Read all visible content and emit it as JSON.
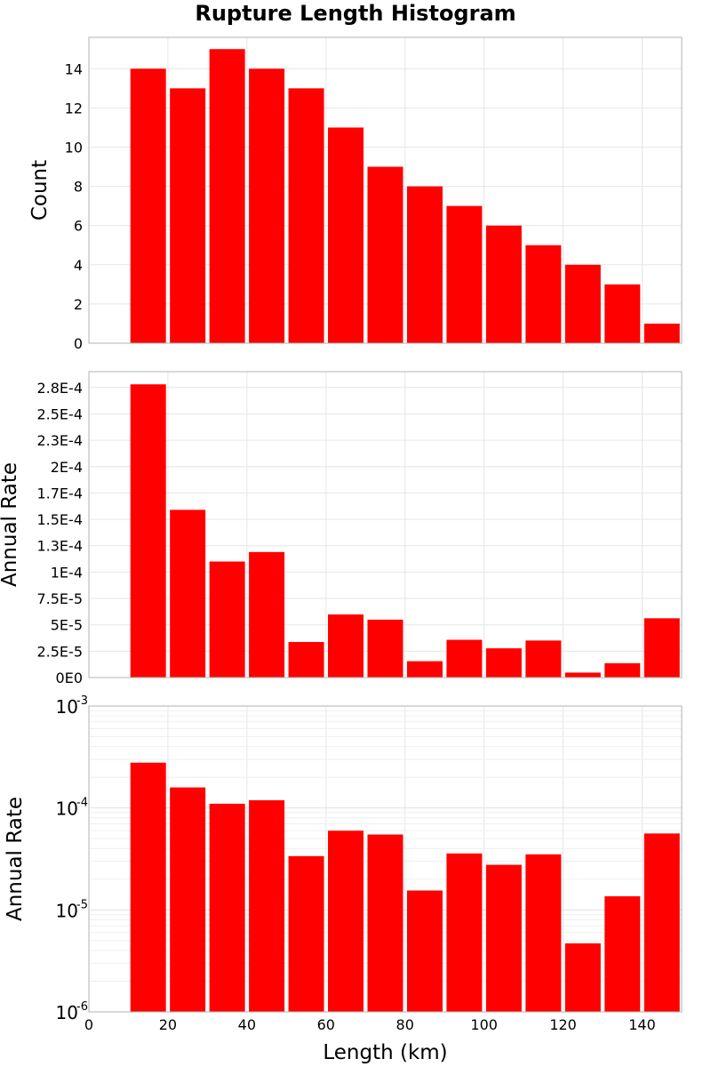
{
  "chart_data": [
    {
      "type": "bar",
      "title": "Rupture Length Histogram",
      "ylabel": "Count",
      "xlim": [
        0,
        150
      ],
      "ylim": [
        0,
        15.6
      ],
      "yticks": [
        "0",
        "2",
        "4",
        "6",
        "8",
        "10",
        "12",
        "14"
      ],
      "grid": true,
      "x": [
        15,
        25,
        35,
        45,
        55,
        65,
        75,
        85,
        95,
        105,
        115,
        125,
        135,
        145
      ],
      "values": [
        14,
        13,
        15,
        14,
        13,
        11,
        9,
        8,
        7,
        6,
        5,
        4,
        3,
        1
      ],
      "color": "#ff0000"
    },
    {
      "type": "bar",
      "ylabel": "Annual Rate",
      "xlim": [
        0,
        150
      ],
      "ylim": [
        0,
        0.00029
      ],
      "yticks": [
        "0E0",
        "2.5E-5",
        "5E-5",
        "7.5E-5",
        "1E-4",
        "1.3E-4",
        "1.5E-4",
        "1.7E-4",
        "2E-4",
        "2.3E-4",
        "2.5E-4",
        "2.8E-4"
      ],
      "ytick_values": [
        0,
        2.5e-05,
        5e-05,
        7.5e-05,
        0.0001,
        0.000125,
        0.00015,
        0.000175,
        0.0002,
        0.000225,
        0.00025,
        0.000275
      ],
      "grid": true,
      "x": [
        15,
        25,
        35,
        45,
        55,
        65,
        75,
        85,
        95,
        105,
        115,
        125,
        135,
        145
      ],
      "values": [
        0.000278,
        0.000159,
        0.00011,
        0.000119,
        3.37e-05,
        5.98e-05,
        5.49e-05,
        1.55e-05,
        3.58e-05,
        2.77e-05,
        3.51e-05,
        4.7e-06,
        1.36e-05,
        5.62e-05
      ],
      "color": "#ff0000"
    },
    {
      "type": "bar",
      "ylabel": "Annual Rate",
      "xlabel": "Length (km)",
      "xlim": [
        0,
        150
      ],
      "xticks": [
        "0",
        "20",
        "40",
        "60",
        "80",
        "100",
        "120",
        "140"
      ],
      "ylim": [
        1e-06,
        0.001
      ],
      "yscale": "log",
      "yticks": [
        {
          "base": "10",
          "exp": "-6"
        },
        {
          "base": "10",
          "exp": "-5"
        },
        {
          "base": "10",
          "exp": "-4"
        },
        {
          "base": "10",
          "exp": "-3"
        }
      ],
      "grid": true,
      "x": [
        15,
        25,
        35,
        45,
        55,
        65,
        75,
        85,
        95,
        105,
        115,
        125,
        135,
        145
      ],
      "values": [
        0.000278,
        0.000159,
        0.00011,
        0.000119,
        3.37e-05,
        5.98e-05,
        5.49e-05,
        1.55e-05,
        3.58e-05,
        2.77e-05,
        3.51e-05,
        4.7e-06,
        1.36e-05,
        5.62e-05
      ],
      "color": "#ff0000"
    }
  ]
}
